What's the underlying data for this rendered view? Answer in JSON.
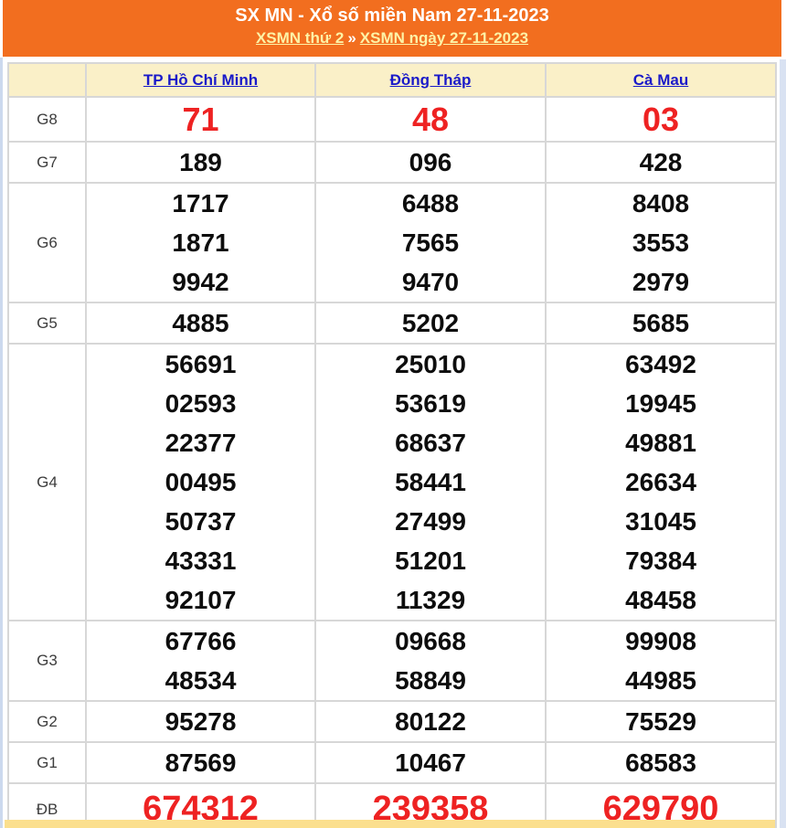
{
  "banner": {
    "title": "SX MN - Xổ số miền Nam 27-11-2023",
    "link_day": "XSMN thứ 2",
    "separator": "»",
    "link_date": "XSMN ngày 27-11-2023",
    "bg_color": "#f26e1f",
    "title_color": "#ffffff",
    "link_color": "#fdf3a7"
  },
  "table": {
    "corner_label": "",
    "columns": [
      "TP Hồ Chí Minh",
      "Đồng Tháp",
      "Cà Mau"
    ],
    "header_bg": "#faf0c8",
    "header_link_color": "#1a1ac9",
    "red_color": "#ee2222",
    "rows": [
      {
        "prize": "G8",
        "values": [
          [
            "71"
          ],
          [
            "48"
          ],
          [
            "03"
          ]
        ]
      },
      {
        "prize": "G7",
        "values": [
          [
            "189"
          ],
          [
            "096"
          ],
          [
            "428"
          ]
        ]
      },
      {
        "prize": "G6",
        "values": [
          [
            "1717",
            "1871",
            "9942"
          ],
          [
            "6488",
            "7565",
            "9470"
          ],
          [
            "8408",
            "3553",
            "2979"
          ]
        ]
      },
      {
        "prize": "G5",
        "values": [
          [
            "4885"
          ],
          [
            "5202"
          ],
          [
            "5685"
          ]
        ]
      },
      {
        "prize": "G4",
        "values": [
          [
            "56691",
            "02593",
            "22377",
            "00495",
            "50737",
            "43331",
            "92107"
          ],
          [
            "25010",
            "53619",
            "68637",
            "58441",
            "27499",
            "51201",
            "11329"
          ],
          [
            "63492",
            "19945",
            "49881",
            "26634",
            "31045",
            "79384",
            "48458"
          ]
        ]
      },
      {
        "prize": "G3",
        "values": [
          [
            "67766",
            "48534"
          ],
          [
            "09668",
            "58849"
          ],
          [
            "99908",
            "44985"
          ]
        ]
      },
      {
        "prize": "G2",
        "values": [
          [
            "95278"
          ],
          [
            "80122"
          ],
          [
            "75529"
          ]
        ]
      },
      {
        "prize": "G1",
        "values": [
          [
            "87569"
          ],
          [
            "10467"
          ],
          [
            "68583"
          ]
        ]
      },
      {
        "prize": "ĐB",
        "values": [
          [
            "674312"
          ],
          [
            "239358"
          ],
          [
            "629790"
          ]
        ]
      }
    ]
  }
}
